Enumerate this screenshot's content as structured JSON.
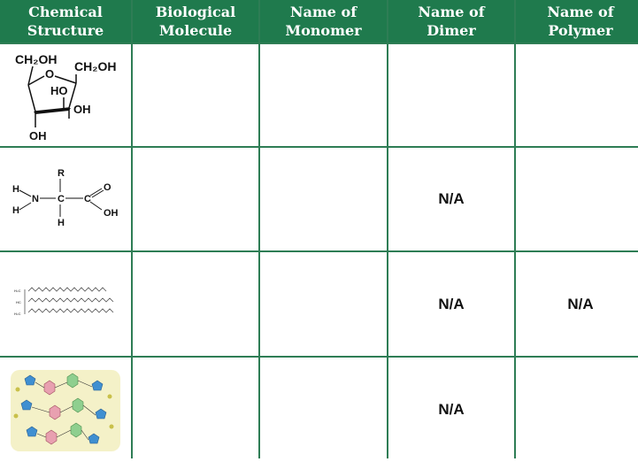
{
  "headers": [
    "Chemical\nStructure",
    "Biological\nMolecule",
    "Name of\nMonomer",
    "Name of\nDimer",
    "Name of\nPolymer"
  ],
  "rows": [
    {
      "structure_icon": "fructose-ring-structure",
      "labels": {
        "ch2oh_left": "CH₂OH",
        "ch2oh_right": "CH₂OH",
        "ring_o": "O",
        "ho": "HO",
        "oh_inner": "OH",
        "oh_bottom": "OH"
      },
      "biological_molecule": "",
      "monomer": "",
      "dimer": "",
      "polymer": ""
    },
    {
      "structure_icon": "amino-acid-structure",
      "labels": {
        "r": "R",
        "h1": "H",
        "n": "N",
        "h2": "H",
        "c": "C",
        "h3": "H",
        "c2": "C",
        "o": "O",
        "oh": "OH"
      },
      "biological_molecule": "",
      "monomer": "",
      "dimer": "N/A",
      "polymer": ""
    },
    {
      "structure_icon": "triglyceride-structure",
      "biological_molecule": "",
      "monomer": "",
      "dimer": "N/A",
      "polymer": "N/A"
    },
    {
      "structure_icon": "dna-double-strand-structure",
      "biological_molecule": "",
      "monomer": "",
      "dimer": "N/A",
      "polymer": ""
    }
  ],
  "colors": {
    "header_bg": "#1f7a4d",
    "border": "#2e7d55"
  }
}
